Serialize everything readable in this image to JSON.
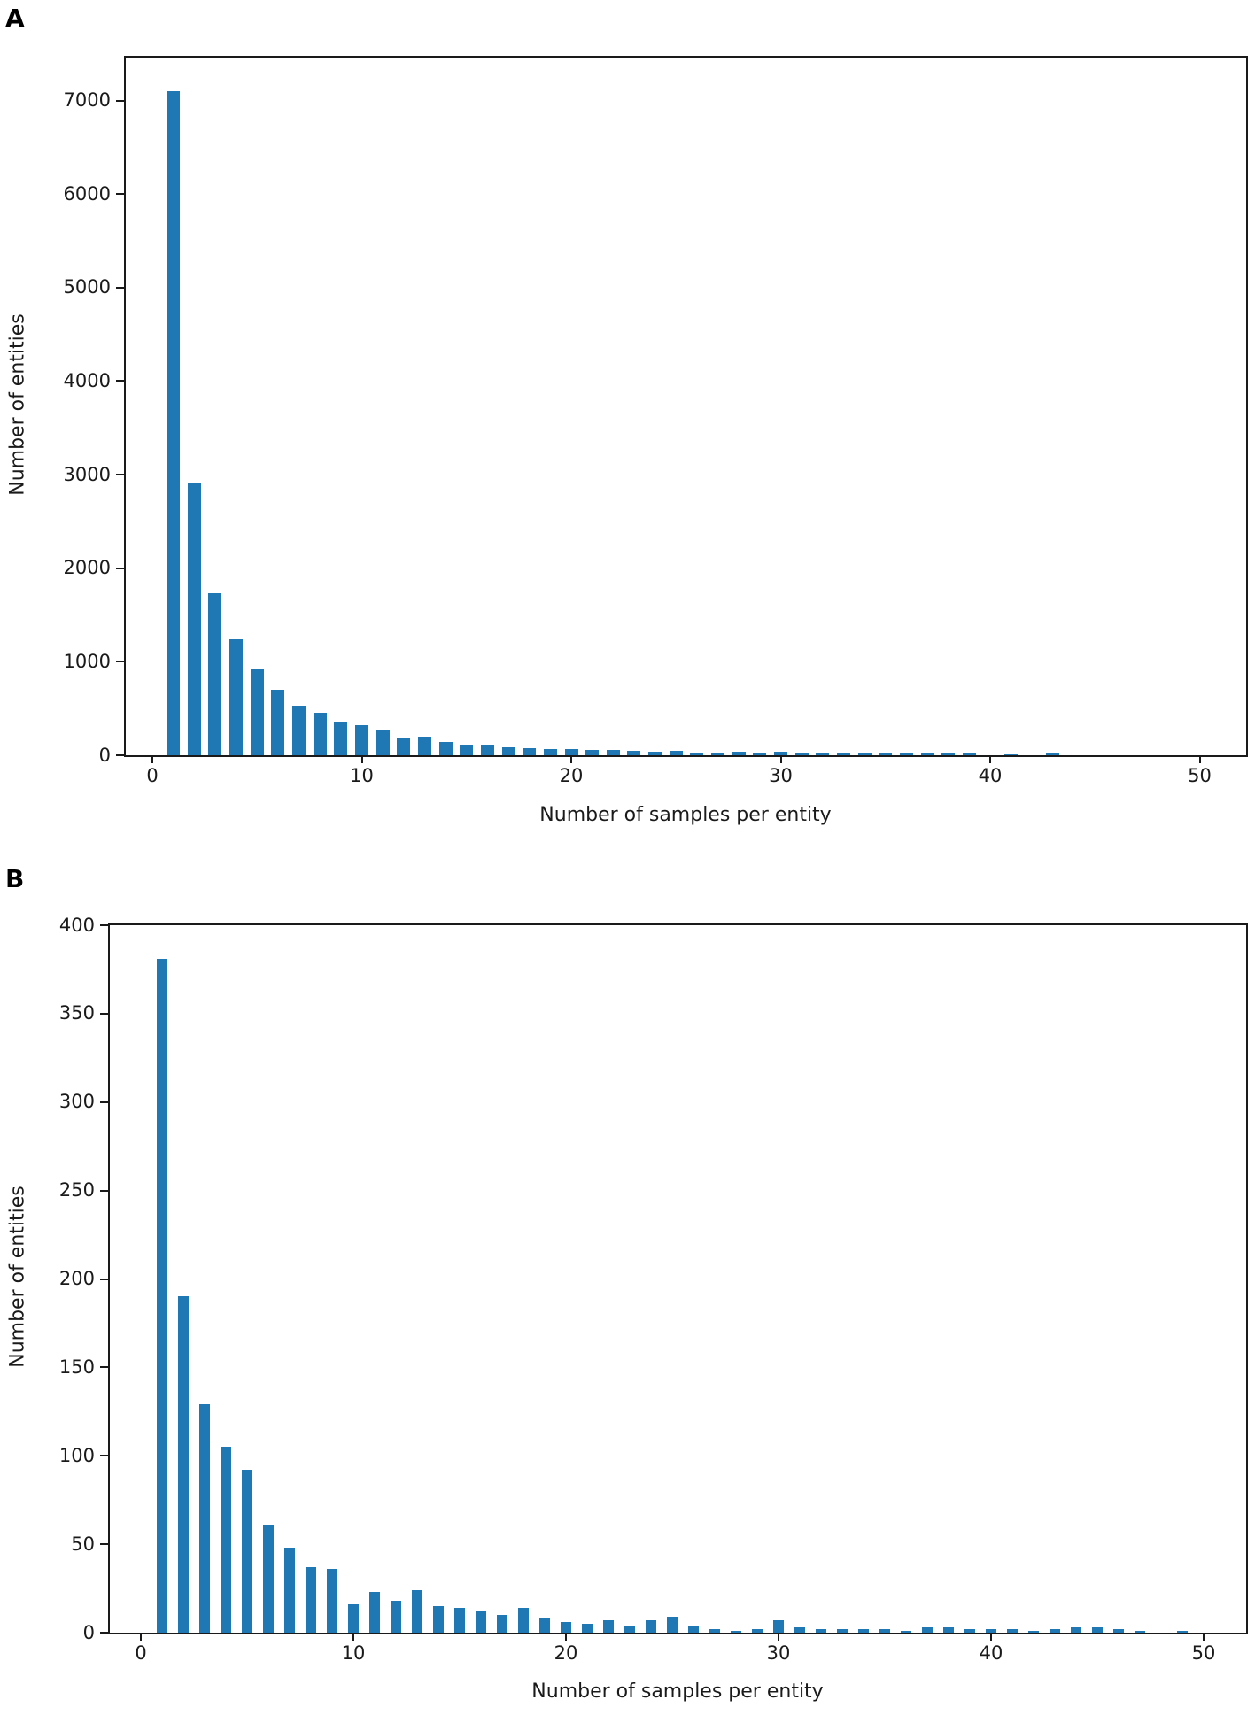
{
  "colors": {
    "bar": "#1f77b4",
    "axis": "#1a1a1a"
  },
  "panels": [
    {
      "letter": "A"
    },
    {
      "letter": "B"
    }
  ],
  "chart_data": [
    {
      "type": "bar",
      "panel": "A",
      "title": "",
      "xlabel": "Number of samples per entity",
      "ylabel": "Number of entities",
      "x": [
        1,
        2,
        3,
        4,
        5,
        6,
        7,
        8,
        9,
        10,
        11,
        12,
        13,
        14,
        15,
        16,
        17,
        18,
        19,
        20,
        21,
        22,
        23,
        24,
        25,
        26,
        27,
        28,
        29,
        30,
        31,
        32,
        33,
        34,
        35,
        36,
        37,
        38,
        39,
        40,
        41,
        42,
        43
      ],
      "values": [
        7100,
        2910,
        1730,
        1240,
        920,
        700,
        530,
        450,
        360,
        320,
        265,
        190,
        195,
        140,
        105,
        118,
        88,
        78,
        70,
        64,
        55,
        60,
        48,
        38,
        46,
        28,
        26,
        36,
        32,
        36,
        28,
        30,
        20,
        24,
        18,
        22,
        15,
        18,
        30,
        0,
        10,
        0,
        25
      ],
      "xticks": [
        0,
        10,
        20,
        30,
        40,
        50
      ],
      "yticks": [
        0,
        1000,
        2000,
        3000,
        4000,
        5000,
        6000,
        7000
      ],
      "xlim": [
        -1.5,
        52.5
      ],
      "ylim": [
        0,
        7460
      ],
      "grid": false,
      "legend": false
    },
    {
      "type": "bar",
      "panel": "B",
      "title": "",
      "xlabel": "Number of samples per entity",
      "ylabel": "Number of entities",
      "x": [
        1,
        2,
        3,
        4,
        5,
        6,
        7,
        8,
        9,
        10,
        11,
        12,
        13,
        14,
        15,
        16,
        17,
        18,
        19,
        20,
        21,
        22,
        23,
        24,
        25,
        26,
        27,
        28,
        29,
        30,
        31,
        32,
        33,
        34,
        35,
        36,
        37,
        38,
        39,
        40,
        41,
        42,
        43,
        44,
        45,
        46,
        47,
        48,
        49,
        50
      ],
      "values": [
        381,
        190,
        129,
        105,
        92,
        61,
        48,
        37,
        36,
        16,
        23,
        18,
        24,
        15,
        14,
        12,
        10,
        14,
        8,
        6,
        5,
        7,
        4,
        7,
        9,
        4,
        2,
        1,
        2,
        7,
        3,
        2,
        2,
        2,
        2,
        1,
        3,
        3,
        2,
        2,
        2,
        1,
        2,
        3,
        3,
        2,
        1,
        0,
        1,
        0
      ],
      "xticks": [
        0,
        10,
        20,
        30,
        40,
        50
      ],
      "yticks": [
        0,
        50,
        100,
        150,
        200,
        250,
        300,
        350,
        400
      ],
      "xlim": [
        -1.5,
        52.5
      ],
      "ylim": [
        0,
        400
      ],
      "grid": false,
      "legend": false
    }
  ]
}
